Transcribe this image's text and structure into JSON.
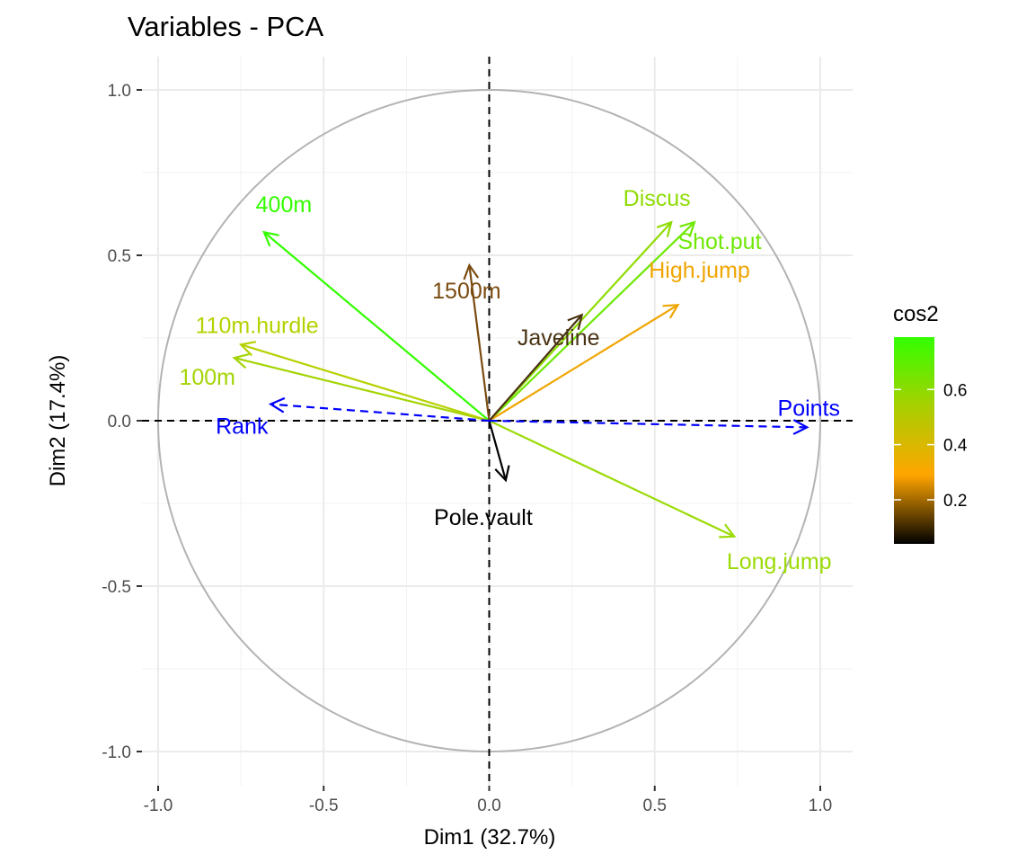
{
  "chart_data": {
    "type": "scatter",
    "subtype": "pca-correlation-circle",
    "title": "Variables - PCA",
    "xlabel": "Dim1 (32.7%)",
    "ylabel": "Dim2 (17.4%)",
    "xlim": [
      -1.0,
      1.0
    ],
    "ylim": [
      -1.0,
      1.0
    ],
    "x_ticks": [
      -1.0,
      -0.5,
      0.0,
      0.5,
      1.0
    ],
    "y_ticks": [
      -1.0,
      -0.5,
      0.0,
      0.5,
      1.0
    ],
    "x_tick_labels": [
      "-1.0",
      "-0.5",
      "0.0",
      "0.5",
      "1.0"
    ],
    "y_tick_labels": [
      "-1.0",
      "-0.5",
      "0.0",
      "0.5",
      "1.0"
    ],
    "grid": true,
    "unit_circle": true,
    "variables": [
      {
        "name": "100m",
        "x": -0.77,
        "y": 0.19,
        "cos2": 0.63,
        "color": "#A4D404",
        "style": "solid"
      },
      {
        "name": "Long.jump",
        "x": 0.74,
        "y": -0.35,
        "cos2": 0.67,
        "color": "#9BDB06",
        "style": "solid"
      },
      {
        "name": "Shot.put",
        "x": 0.62,
        "y": 0.6,
        "cos2": 0.74,
        "color": "#6FE805",
        "style": "solid"
      },
      {
        "name": "High.jump",
        "x": 0.57,
        "y": 0.35,
        "cos2": 0.45,
        "color": "#F0A500",
        "style": "solid"
      },
      {
        "name": "400m",
        "x": -0.68,
        "y": 0.57,
        "cos2": 0.79,
        "color": "#33FF00",
        "style": "solid"
      },
      {
        "name": "110m.hurdle",
        "x": -0.75,
        "y": 0.23,
        "cos2": 0.62,
        "color": "#B6D100",
        "style": "solid"
      },
      {
        "name": "Discus",
        "x": 0.55,
        "y": 0.6,
        "cos2": 0.66,
        "color": "#8FDC04",
        "style": "solid"
      },
      {
        "name": "Pole.vault",
        "x": 0.05,
        "y": -0.18,
        "cos2": 0.04,
        "color": "#000000",
        "style": "solid"
      },
      {
        "name": "Javeline",
        "x": 0.28,
        "y": 0.32,
        "cos2": 0.18,
        "color": "#4A3314",
        "style": "solid"
      },
      {
        "name": "1500m",
        "x": -0.06,
        "y": 0.47,
        "cos2": 0.23,
        "color": "#7A4C10",
        "style": "solid"
      },
      {
        "name": "Rank",
        "x": -0.66,
        "y": 0.05,
        "cos2": null,
        "color": "#0000FF",
        "style": "dashed"
      },
      {
        "name": "Points",
        "x": 0.96,
        "y": -0.02,
        "cos2": null,
        "color": "#0000FF",
        "style": "dashed"
      }
    ],
    "legend": {
      "title": "cos2",
      "position": "right",
      "type": "gradient",
      "ticks": [
        "0.2",
        "0.4",
        "0.6"
      ],
      "tick_values": [
        0.2,
        0.4,
        0.6
      ],
      "range": [
        0.04,
        0.79
      ],
      "colors": [
        "#000000",
        "#FFA500",
        "#A8D000",
        "#33FF00"
      ]
    }
  }
}
